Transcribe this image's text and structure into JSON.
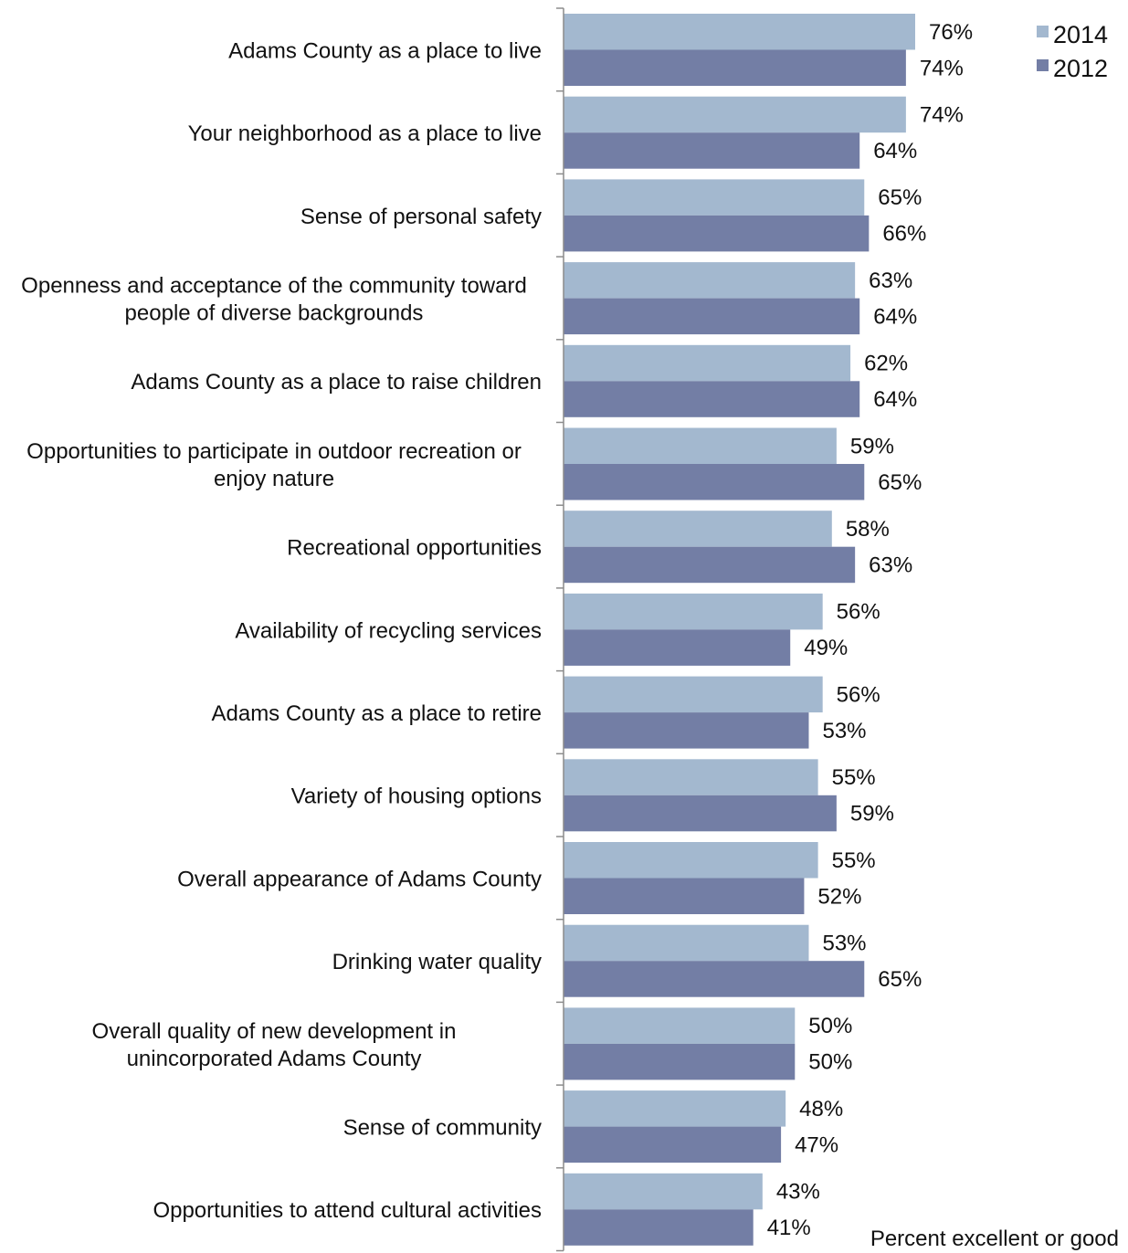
{
  "chart_data": {
    "type": "bar",
    "orientation": "horizontal",
    "categories": [
      [
        "Adams County as a place to live"
      ],
      [
        "Your neighborhood as a place to live"
      ],
      [
        "Sense of personal safety"
      ],
      [
        "Openness and acceptance of the community toward",
        "people of diverse backgrounds"
      ],
      [
        "Adams County as a place to raise children"
      ],
      [
        "Opportunities to participate in outdoor recreation or",
        "enjoy nature"
      ],
      [
        "Recreational opportunities"
      ],
      [
        "Availability of recycling services"
      ],
      [
        "Adams County as a place to retire"
      ],
      [
        "Variety of housing options"
      ],
      [
        "Overall appearance of Adams County"
      ],
      [
        "Drinking water quality"
      ],
      [
        "Overall quality of new development in",
        "unincorporated Adams County"
      ],
      [
        "Sense of community"
      ],
      [
        "Opportunities to attend cultural activities"
      ]
    ],
    "series": [
      {
        "name": "2014",
        "color": "#a3b8cf",
        "values": [
          76,
          74,
          65,
          63,
          62,
          59,
          58,
          56,
          56,
          55,
          55,
          53,
          50,
          48,
          43
        ]
      },
      {
        "name": "2012",
        "color": "#737ea5",
        "values": [
          74,
          64,
          66,
          64,
          64,
          65,
          63,
          49,
          53,
          59,
          52,
          65,
          50,
          47,
          41
        ]
      }
    ],
    "value_suffix": "%",
    "xlabel": "Percent excellent or good",
    "ylabel": "",
    "xlim": [
      0,
      100
    ],
    "legend_position": "top-right",
    "grid": false
  }
}
